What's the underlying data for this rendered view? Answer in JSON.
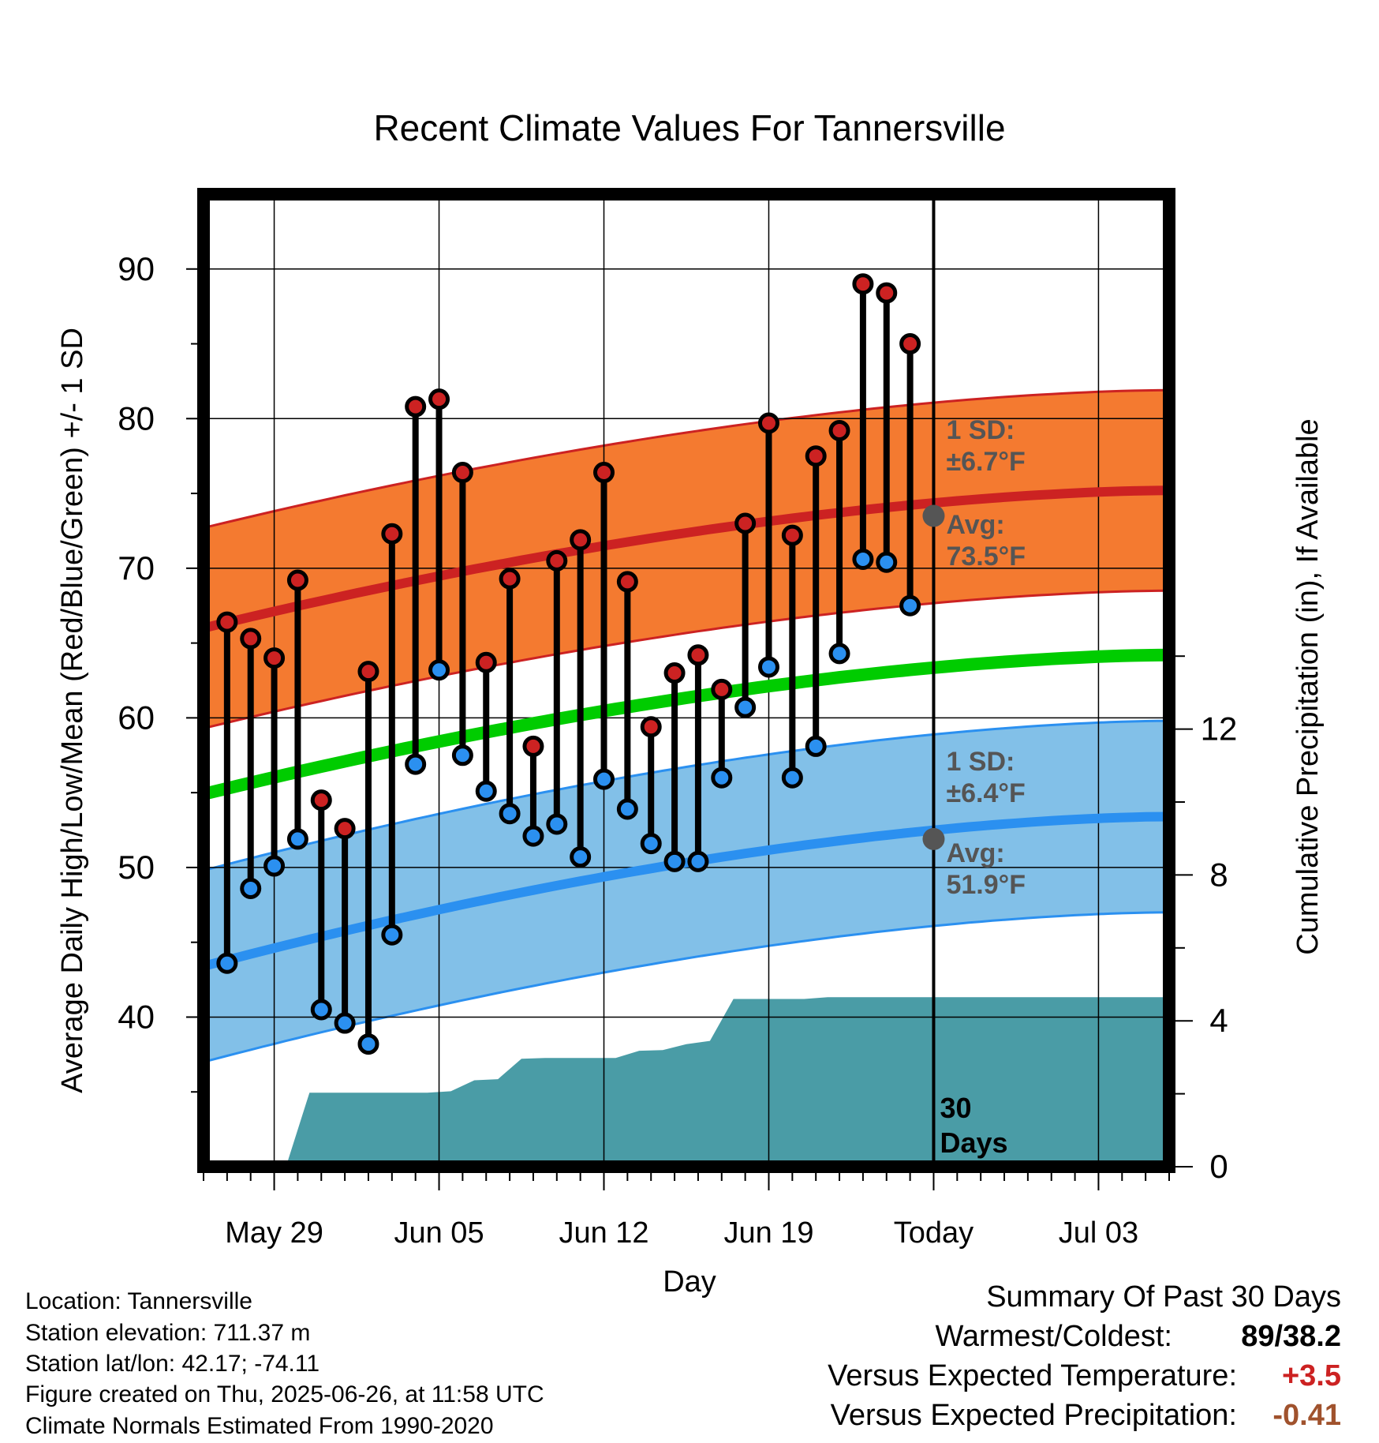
{
  "chart_data": {
    "type": "line",
    "title": "Recent Climate Values For Tannersville",
    "xlabel": "Day",
    "ylabel": "Average Daily High/Low/Mean (Red/Blue/Green) +/- 1 SD",
    "y2label": "Cumulative Precipitation (in), If Available",
    "ylim": [
      30,
      95
    ],
    "y2lim": [
      0,
      24
    ],
    "yticks": [
      40,
      50,
      60,
      70,
      80,
      90
    ],
    "y2ticks": [
      0,
      4,
      8,
      12
    ],
    "x_start": "May 26",
    "x_end": "Jul 06",
    "xticks": [
      "May 29",
      "Jun 05",
      "Jun 12",
      "Jun 19",
      "Today",
      "Jul 03"
    ],
    "today_index": 31,
    "today_marker_label": "30\nDays",
    "grid": true,
    "days": [
      "May 27",
      "May 28",
      "May 29",
      "May 30",
      "May 31",
      "Jun 01",
      "Jun 02",
      "Jun 03",
      "Jun 04",
      "Jun 05",
      "Jun 06",
      "Jun 07",
      "Jun 08",
      "Jun 09",
      "Jun 10",
      "Jun 11",
      "Jun 12",
      "Jun 13",
      "Jun 14",
      "Jun 15",
      "Jun 16",
      "Jun 17",
      "Jun 18",
      "Jun 19",
      "Jun 20",
      "Jun 21",
      "Jun 22",
      "Jun 23",
      "Jun 24",
      "Jun 25"
    ],
    "highs": [
      66.4,
      65.3,
      64.0,
      69.2,
      54.5,
      52.6,
      63.1,
      72.3,
      80.8,
      81.3,
      76.4,
      63.7,
      69.3,
      58.1,
      70.5,
      71.9,
      76.4,
      69.1,
      59.4,
      63.0,
      64.2,
      61.9,
      73.0,
      79.7,
      72.2,
      77.5,
      79.2,
      89.0,
      88.4,
      85.0
    ],
    "lows": [
      43.6,
      48.6,
      50.1,
      51.9,
      40.5,
      39.6,
      38.2,
      45.5,
      56.9,
      63.2,
      57.5,
      55.1,
      53.6,
      52.1,
      52.9,
      50.7,
      55.9,
      53.9,
      51.6,
      50.4,
      50.4,
      56.0,
      60.7,
      63.4,
      56.0,
      58.1,
      64.3,
      70.6,
      70.4,
      67.5
    ],
    "normal_high": {
      "start": 66.0,
      "today": 73.5,
      "end": 75.2,
      "sd": 6.7
    },
    "normal_low": {
      "start": 43.4,
      "today": 51.9,
      "end": 53.4,
      "sd": 6.4
    },
    "normal_mean": {
      "start": 54.9,
      "end": 64.2
    },
    "precip_cumulative": [
      0,
      0,
      0,
      0,
      2.03,
      2.03,
      2.03,
      2.03,
      2.03,
      2.03,
      2.07,
      2.37,
      2.4,
      2.96,
      2.98,
      2.98,
      2.98,
      2.98,
      3.18,
      3.2,
      3.36,
      3.45,
      4.6,
      4.6,
      4.6,
      4.6,
      4.65,
      4.65,
      4.65,
      4.65,
      4.65
    ],
    "labels": {
      "high_sd": "1 SD:",
      "high_sd_value": "±6.7°F",
      "high_avg": "Avg:",
      "high_avg_value": "73.5°F",
      "low_sd": "1 SD:",
      "low_sd_value": "±6.4°F",
      "low_avg": "Avg:",
      "low_avg_value": "51.9°F"
    },
    "colors": {
      "high": "#cc2222",
      "high_band": "#f47a30",
      "low": "#2b90f0",
      "low_band": "#82c0e8",
      "mean": "#00cc00",
      "precip": "#4a9ca6",
      "annotation": "#555555"
    }
  },
  "info": {
    "location": "Location: Tannersville",
    "elevation": "Station elevation: 711.37 m",
    "latlon": "Station lat/lon: 42.17; -74.11",
    "created": "Figure created on Thu, 2025-06-26, at 11:58 UTC",
    "normals": "Climate Normals Estimated From 1990-2020"
  },
  "summary": {
    "title": "Summary Of Past 30 Days",
    "warm_cold_label": "Warmest/Coldest:",
    "warm_cold_value": "89/38.2",
    "temp_label": "Versus Expected Temperature:",
    "temp_value": "+3.5",
    "temp_color": "#cc2222",
    "precip_label": "Versus Expected Precipitation:",
    "precip_value": "-0.41",
    "precip_color": "#a0522d"
  }
}
